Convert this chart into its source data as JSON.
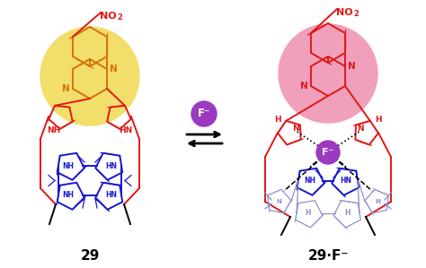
{
  "background": "#ffffff",
  "color_orange": "#d4720a",
  "color_red": "#e01818",
  "color_blue": "#1818cc",
  "color_purple": "#9b3abf",
  "color_yellow_bg": "#f2de6a",
  "color_pink_bg": "#f0a0bb",
  "color_black": "#000000",
  "color_light_blue": "#9090cc",
  "label_29": "29",
  "label_29F": "29·F⁻",
  "F_label": "F⁻",
  "lw_main": 1.4,
  "lw_thin": 0.9,
  "fig_w": 4.74,
  "fig_h": 2.99,
  "dpi": 100
}
